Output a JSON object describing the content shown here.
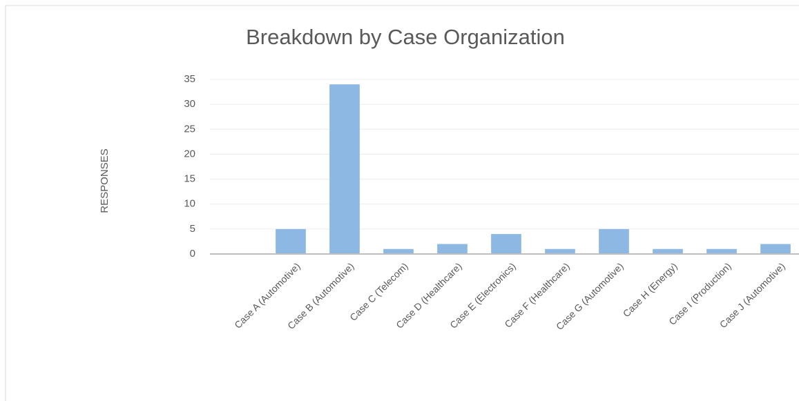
{
  "chart_data": {
    "type": "bar",
    "title": "Breakdown by Case Organization",
    "y_label": "RESPONSES",
    "categories": [
      null,
      "Case A (Automotive)",
      "Case B (Automotive)",
      "Case C (Telecom)",
      "Case D (Healthcare)",
      "Case E (Electronics)",
      "Case F (Healthcare)",
      "Case G (Automotive)",
      "Case H (Energy)",
      "Case I (Production)",
      "Case J (Automotive)"
    ],
    "values": [
      null,
      5,
      34,
      1,
      2,
      4,
      1,
      5,
      1,
      1,
      2
    ],
    "color": "#8db8e3",
    "ylim": [
      0,
      35
    ],
    "yticks": [
      0,
      5,
      10,
      15,
      20,
      25,
      30,
      35
    ],
    "grid": true
  }
}
